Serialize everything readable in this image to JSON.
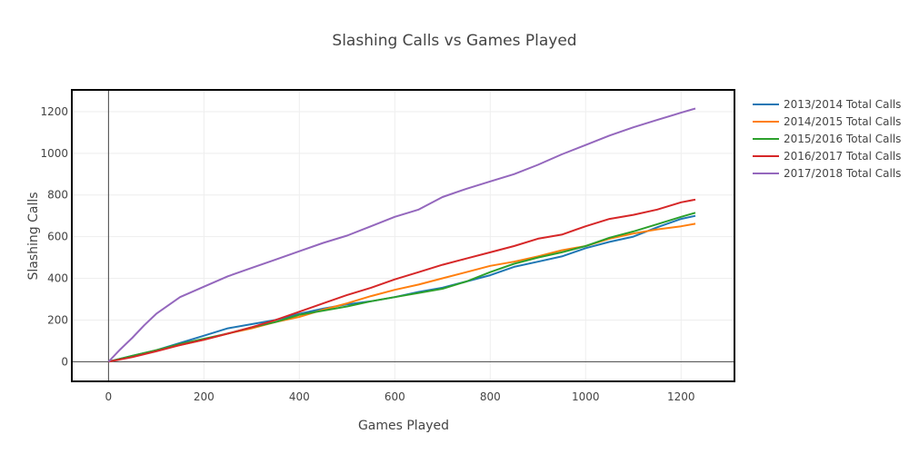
{
  "chart_data": {
    "type": "line",
    "title": "Slashing Calls vs Games Played",
    "xlabel": "Games Played",
    "ylabel": "Slashing Calls",
    "xlim": [
      -75,
      1310
    ],
    "ylim": [
      -90,
      1300
    ],
    "x_ticks": [
      0,
      200,
      400,
      600,
      800,
      1000,
      1200
    ],
    "y_ticks": [
      0,
      200,
      400,
      600,
      800,
      1000,
      1200
    ],
    "grid": true,
    "legend_position": "right",
    "series": [
      {
        "name": "2013/2014 Total Calls",
        "color": "#1f77b4",
        "points": [
          [
            0,
            0
          ],
          [
            50,
            28
          ],
          [
            100,
            55
          ],
          [
            150,
            90
          ],
          [
            200,
            125
          ],
          [
            250,
            160
          ],
          [
            300,
            180
          ],
          [
            350,
            200
          ],
          [
            400,
            230
          ],
          [
            450,
            255
          ],
          [
            500,
            275
          ],
          [
            550,
            290
          ],
          [
            600,
            310
          ],
          [
            650,
            335
          ],
          [
            700,
            355
          ],
          [
            750,
            385
          ],
          [
            800,
            415
          ],
          [
            850,
            455
          ],
          [
            900,
            480
          ],
          [
            950,
            505
          ],
          [
            1000,
            545
          ],
          [
            1050,
            575
          ],
          [
            1100,
            600
          ],
          [
            1150,
            645
          ],
          [
            1200,
            685
          ],
          [
            1230,
            700
          ]
        ]
      },
      {
        "name": "2014/2015 Total Calls",
        "color": "#ff7f0e",
        "points": [
          [
            0,
            0
          ],
          [
            50,
            25
          ],
          [
            100,
            55
          ],
          [
            150,
            80
          ],
          [
            200,
            105
          ],
          [
            250,
            135
          ],
          [
            300,
            160
          ],
          [
            350,
            190
          ],
          [
            400,
            215
          ],
          [
            450,
            250
          ],
          [
            500,
            280
          ],
          [
            550,
            315
          ],
          [
            600,
            345
          ],
          [
            650,
            370
          ],
          [
            700,
            400
          ],
          [
            750,
            430
          ],
          [
            800,
            460
          ],
          [
            850,
            480
          ],
          [
            900,
            505
          ],
          [
            950,
            535
          ],
          [
            1000,
            555
          ],
          [
            1050,
            590
          ],
          [
            1100,
            615
          ],
          [
            1150,
            635
          ],
          [
            1200,
            650
          ],
          [
            1230,
            662
          ]
        ]
      },
      {
        "name": "2015/2016 Total Calls",
        "color": "#2ca02c",
        "points": [
          [
            0,
            0
          ],
          [
            50,
            28
          ],
          [
            100,
            55
          ],
          [
            150,
            85
          ],
          [
            200,
            110
          ],
          [
            250,
            135
          ],
          [
            300,
            165
          ],
          [
            350,
            190
          ],
          [
            400,
            225
          ],
          [
            450,
            245
          ],
          [
            500,
            265
          ],
          [
            550,
            290
          ],
          [
            600,
            310
          ],
          [
            650,
            330
          ],
          [
            700,
            350
          ],
          [
            750,
            385
          ],
          [
            800,
            430
          ],
          [
            850,
            470
          ],
          [
            900,
            500
          ],
          [
            950,
            525
          ],
          [
            1000,
            555
          ],
          [
            1050,
            595
          ],
          [
            1100,
            625
          ],
          [
            1150,
            660
          ],
          [
            1200,
            695
          ],
          [
            1230,
            715
          ]
        ]
      },
      {
        "name": "2016/2017 Total Calls",
        "color": "#d62728",
        "points": [
          [
            0,
            0
          ],
          [
            50,
            22
          ],
          [
            100,
            50
          ],
          [
            150,
            80
          ],
          [
            200,
            105
          ],
          [
            250,
            135
          ],
          [
            300,
            165
          ],
          [
            350,
            200
          ],
          [
            400,
            240
          ],
          [
            450,
            280
          ],
          [
            500,
            320
          ],
          [
            550,
            355
          ],
          [
            600,
            395
          ],
          [
            650,
            430
          ],
          [
            700,
            465
          ],
          [
            750,
            495
          ],
          [
            800,
            525
          ],
          [
            850,
            555
          ],
          [
            900,
            590
          ],
          [
            950,
            610
          ],
          [
            1000,
            650
          ],
          [
            1050,
            685
          ],
          [
            1100,
            705
          ],
          [
            1150,
            730
          ],
          [
            1200,
            765
          ],
          [
            1230,
            778
          ]
        ]
      },
      {
        "name": "2017/2018 Total Calls",
        "color": "#9467bd",
        "points": [
          [
            0,
            0
          ],
          [
            25,
            60
          ],
          [
            50,
            115
          ],
          [
            75,
            175
          ],
          [
            100,
            230
          ],
          [
            150,
            310
          ],
          [
            200,
            360
          ],
          [
            250,
            410
          ],
          [
            300,
            450
          ],
          [
            350,
            490
          ],
          [
            400,
            530
          ],
          [
            450,
            570
          ],
          [
            500,
            605
          ],
          [
            550,
            650
          ],
          [
            600,
            695
          ],
          [
            650,
            730
          ],
          [
            700,
            790
          ],
          [
            750,
            830
          ],
          [
            800,
            865
          ],
          [
            850,
            900
          ],
          [
            900,
            945
          ],
          [
            950,
            995
          ],
          [
            1000,
            1040
          ],
          [
            1050,
            1085
          ],
          [
            1100,
            1125
          ],
          [
            1150,
            1160
          ],
          [
            1200,
            1195
          ],
          [
            1230,
            1215
          ]
        ]
      }
    ]
  }
}
